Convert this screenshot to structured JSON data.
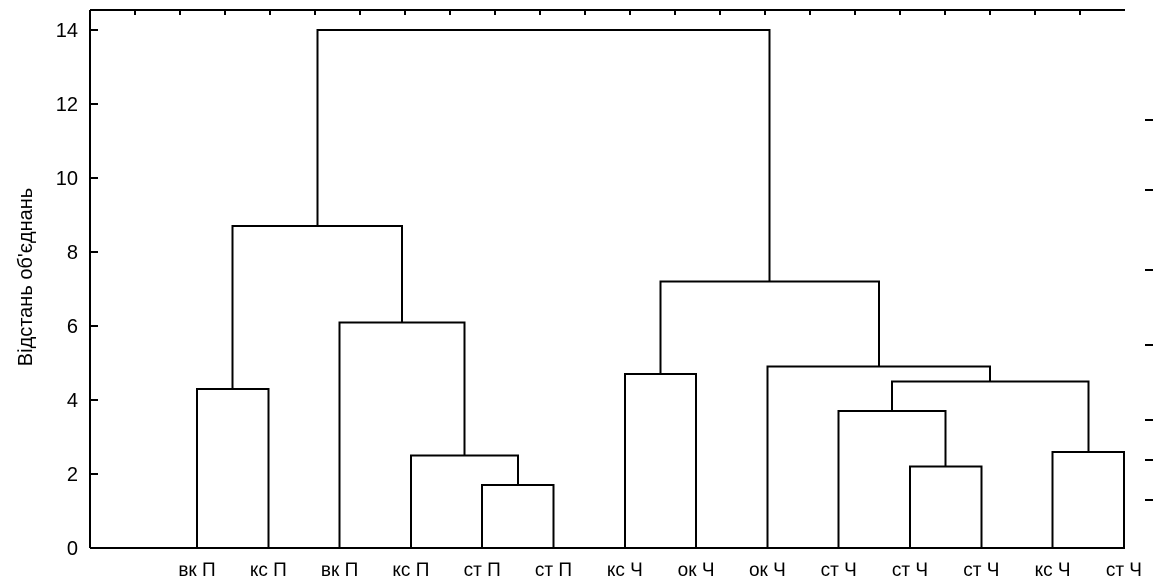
{
  "chart_data": {
    "type": "dendrogram",
    "ylabel": "Відстань об'єднань",
    "ylim": [
      0,
      14
    ],
    "yticks": [
      0,
      2,
      4,
      6,
      8,
      10,
      12,
      14
    ],
    "grid": false,
    "leaves": [
      "вк П",
      "кс П",
      "вк П",
      "кс П",
      "ст П",
      "ст П",
      "кс Ч",
      "ок Ч",
      "ок Ч",
      "ст Ч",
      "ст Ч",
      "ст Ч",
      "кс Ч",
      "ст Ч"
    ],
    "merges": [
      {
        "left": 4,
        "right": 5,
        "height": 1.7
      },
      {
        "left": 3,
        "right": 14,
        "height": 2.5
      },
      {
        "left": 2,
        "right": 15,
        "height": 6.1
      },
      {
        "left": 0,
        "right": 1,
        "height": 4.3
      },
      {
        "left": 17,
        "right": 16,
        "height": 8.7
      },
      {
        "left": 10,
        "right": 11,
        "height": 2.2
      },
      {
        "left": 9,
        "right": 19,
        "height": 3.7
      },
      {
        "left": 12,
        "right": 13,
        "height": 2.6
      },
      {
        "left": 20,
        "right": 21,
        "height": 4.5
      },
      {
        "left": 8,
        "right": 22,
        "height": 4.9
      },
      {
        "left": 6,
        "right": 7,
        "height": 4.7
      },
      {
        "left": 24,
        "right": 23,
        "height": 7.2
      },
      {
        "left": 18,
        "right": 25,
        "height": 14.0
      }
    ]
  }
}
